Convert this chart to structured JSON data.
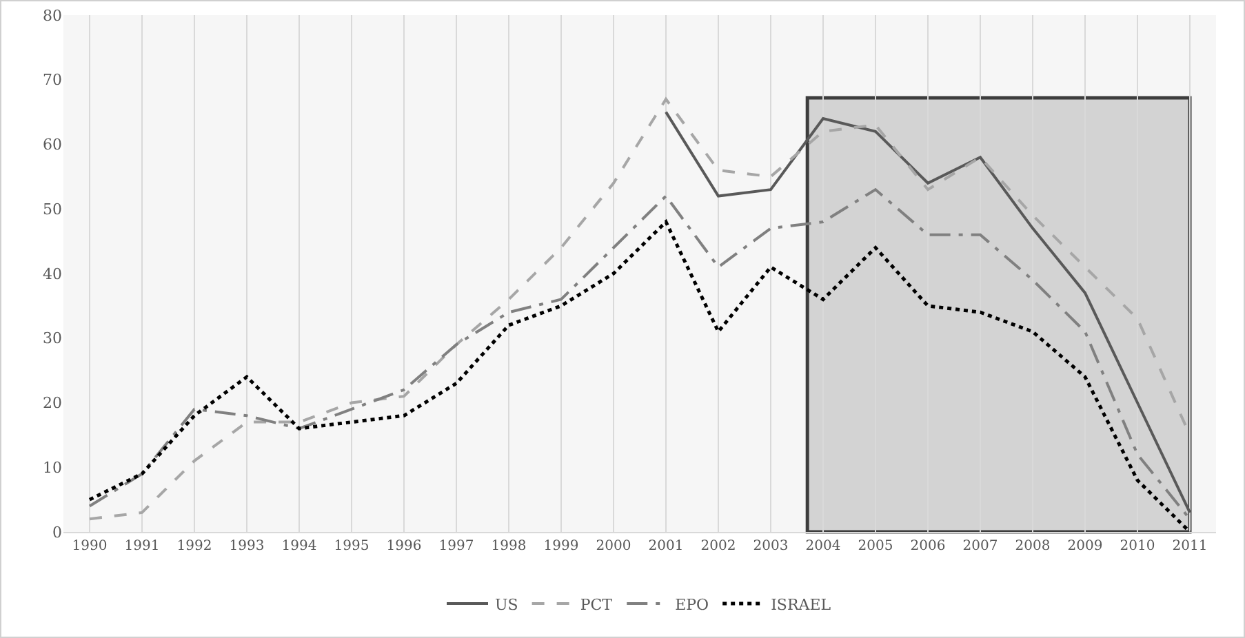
{
  "chart_data": {
    "type": "line",
    "categories": [
      "1990",
      "1991",
      "1992",
      "1993",
      "1994",
      "1995",
      "1996",
      "1997",
      "1998",
      "1999",
      "2000",
      "2001",
      "2002",
      "2003",
      "2004",
      "2005",
      "2006",
      "2007",
      "2008",
      "2009",
      "2010",
      "2011"
    ],
    "series": [
      {
        "name": "US",
        "color": "#595959",
        "line_style": "solid",
        "values": [
          null,
          null,
          null,
          null,
          null,
          null,
          null,
          null,
          null,
          null,
          null,
          65,
          52,
          53,
          64,
          62,
          54,
          58,
          47,
          37,
          20,
          3
        ]
      },
      {
        "name": "PCT",
        "color": "#a6a6a6",
        "line_style": "dashed",
        "values": [
          2,
          3,
          11,
          17,
          17,
          20,
          21,
          29,
          36,
          44,
          54,
          67,
          56,
          55,
          62,
          63,
          53,
          58,
          49,
          41,
          33,
          15
        ]
      },
      {
        "name": "EPO",
        "color": "#808080",
        "line_style": "dashdot",
        "values": [
          4,
          9,
          19,
          18,
          16,
          19,
          22,
          29,
          34,
          36,
          44,
          52,
          41,
          47,
          48,
          53,
          46,
          46,
          39,
          31,
          12,
          2
        ]
      },
      {
        "name": "ISRAEL",
        "color": "#000000",
        "line_style": "dotted",
        "values": [
          5,
          9,
          18,
          24,
          16,
          17,
          18,
          23,
          32,
          35,
          40,
          48,
          31,
          41,
          36,
          44,
          35,
          34,
          31,
          24,
          8,
          0
        ]
      }
    ],
    "ylim": [
      0,
      80
    ],
    "yticks": [
      0,
      10,
      20,
      30,
      40,
      50,
      60,
      70,
      80
    ],
    "bands": [
      {
        "axis": "x",
        "from": "2004",
        "to": "2011",
        "color": "#c8c8c8"
      }
    ],
    "grid": "x",
    "legend": "bottom",
    "marker": "none"
  }
}
